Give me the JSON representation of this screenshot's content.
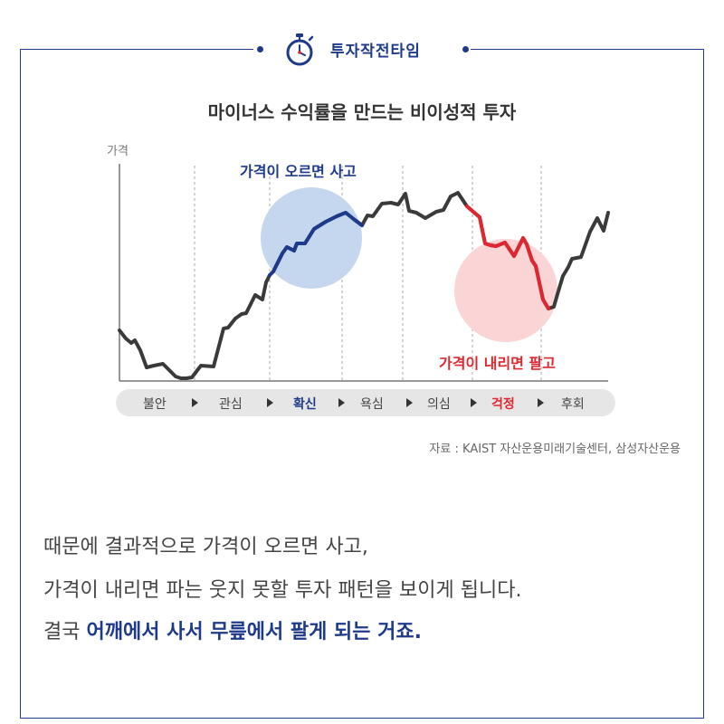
{
  "header": {
    "title": "투자작전타임",
    "icon": "stopwatch-icon"
  },
  "chart_data": {
    "type": "line",
    "title": "마이너스 수익률을 만드는 비이성적 투자",
    "ylabel": "가격",
    "stages": [
      "불안",
      "관심",
      "확신",
      "욕심",
      "의심",
      "걱정",
      "후회"
    ],
    "highlight_stages": {
      "확신": "#1e3a8a",
      "걱정": "#e0262e"
    },
    "annotations": {
      "up": "가격이 오르면 사고",
      "down": "가격이 내리면 팔고"
    },
    "series": [
      {
        "x": [
          0,
          7,
          13,
          17,
          23,
          30,
          38,
          48,
          55,
          62,
          68,
          74,
          80,
          90,
          104,
          115,
          120,
          128,
          135,
          140,
          150,
          158,
          162,
          166,
          170,
          180,
          185,
          193,
          196,
          205,
          215,
          228,
          240,
          250,
          260,
          268,
          274,
          280,
          290,
          300,
          308,
          316,
          320,
          328,
          338,
          350,
          358,
          366,
          374,
          384,
          398,
          404,
          410,
          416,
          426,
          436,
          446,
          450,
          456,
          460,
          468,
          474,
          480,
          484,
          490,
          496,
          500,
          510,
          520,
          528,
          535,
          540
        ],
        "y": [
          55,
          46,
          41,
          44,
          33,
          14,
          16,
          18,
          11,
          4,
          2,
          2,
          3,
          16,
          15,
          57,
          58,
          68,
          73,
          74,
          94,
          89,
          108,
          116,
          120,
          140,
          147,
          143,
          151,
          151,
          167,
          175,
          181,
          185,
          177,
          171,
          182,
          181,
          195,
          196,
          194,
          206,
          187,
          185,
          179,
          186,
          188,
          203,
          207,
          192,
          180,
          151,
          149,
          148,
          152,
          137,
          157,
          150,
          132,
          126,
          89,
          79,
          81,
          95,
          115,
          125,
          134,
          136,
          164,
          179,
          165,
          185
        ]
      }
    ],
    "up_segment_x": [
      166,
      270
    ],
    "down_segment_x": [
      380,
      478
    ],
    "grid": "vertical-dashed"
  },
  "source": "자료 : KAIST 자산운용미래기술센터, 삼성자산운용",
  "body": {
    "line1": "때문에 결과적으로 가격이 오르면 사고,",
    "line2": "가격이 내리면 파는 웃지 못할 투자 패턴을 보이게 됩니다.",
    "line3_prefix": "결국 ",
    "line3_highlight": "어깨에서 사서 무릎에서 팔게 되는 거죠."
  },
  "colors": {
    "accent": "#1e3a8a",
    "warn": "#e0262e",
    "line": "#3a3a3a"
  }
}
